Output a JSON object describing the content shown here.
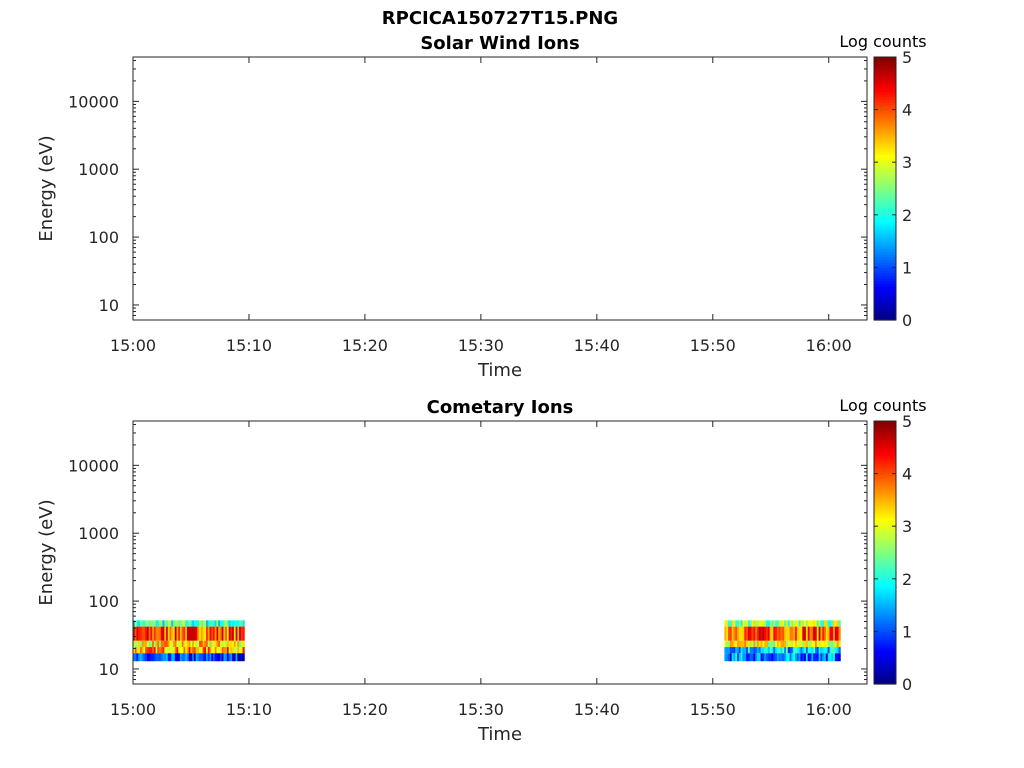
{
  "figure": {
    "title": "RPCICA150727T15.PNG"
  },
  "chart_data": [
    {
      "type": "heatmap",
      "title": "Solar Wind Ions",
      "xlabel": "Time",
      "ylabel": "Energy (eV)",
      "x_ticks": [
        "15:00",
        "15:10",
        "15:20",
        "15:30",
        "15:40",
        "15:50",
        "16:00"
      ],
      "xlim_minutes": [
        0,
        63.3
      ],
      "y_scale": "log",
      "y_ticks": [
        "10",
        "100",
        "1000",
        "10000"
      ],
      "ylim": [
        6,
        45000
      ],
      "colorbar": {
        "title": "Log counts",
        "range": [
          0,
          5
        ],
        "ticks": [
          "0",
          "1",
          "2",
          "3",
          "4",
          "5"
        ]
      },
      "blocks": []
    },
    {
      "type": "heatmap",
      "title": "Cometary Ions",
      "xlabel": "Time",
      "ylabel": "Energy (eV)",
      "x_ticks": [
        "15:00",
        "15:10",
        "15:20",
        "15:30",
        "15:40",
        "15:50",
        "16:00"
      ],
      "xlim_minutes": [
        0,
        63.3
      ],
      "y_scale": "log",
      "y_ticks": [
        "10",
        "100",
        "1000",
        "10000"
      ],
      "ylim": [
        6,
        45000
      ],
      "colorbar": {
        "title": "Log counts",
        "range": [
          0,
          5
        ],
        "ticks": [
          "0",
          "1",
          "2",
          "3",
          "4",
          "5"
        ]
      },
      "blocks": [
        {
          "x_start": "15:00",
          "x_end": "15:09.6",
          "energy_range": [
            13,
            52
          ],
          "bands": [
            {
              "energy": [
                42,
                52
              ],
              "log_counts_approx": 2.2
            },
            {
              "energy": [
                26,
                42
              ],
              "log_counts_approx": 4.0
            },
            {
              "energy": [
                21,
                26
              ],
              "log_counts_approx": 3.2
            },
            {
              "energy": [
                17,
                21
              ],
              "log_counts_approx": 3.6
            },
            {
              "energy": [
                13,
                17
              ],
              "log_counts_approx": 0.8
            }
          ]
        },
        {
          "x_start": "15:51",
          "x_end": "16:01",
          "energy_range": [
            13,
            52
          ],
          "bands": [
            {
              "energy": [
                42,
                52
              ],
              "log_counts_approx": 2.6
            },
            {
              "energy": [
                26,
                42
              ],
              "log_counts_approx": 4.0
            },
            {
              "energy": [
                21,
                26
              ],
              "log_counts_approx": 3.0
            },
            {
              "energy": [
                17,
                21
              ],
              "log_counts_approx": 1.6
            },
            {
              "energy": [
                13,
                17
              ],
              "log_counts_approx": 1.2
            }
          ]
        }
      ]
    }
  ]
}
